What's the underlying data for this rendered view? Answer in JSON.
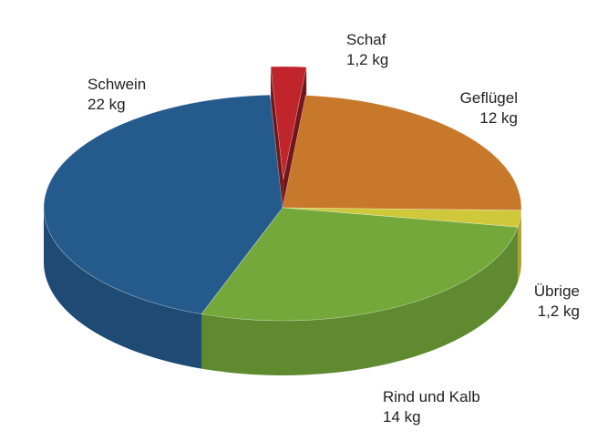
{
  "chart_data": {
    "type": "pie",
    "style": "3d-exploded",
    "slices": [
      {
        "label": "Schaf",
        "value": 1.2,
        "value_label": "1,2 kg",
        "color": "#c0252b",
        "exploded": true
      },
      {
        "label": "Geflügel",
        "value": 12,
        "value_label": "12 kg",
        "color": "#c8782a",
        "exploded": false
      },
      {
        "label": "Übrige",
        "value": 1.2,
        "value_label": "1,2 kg",
        "color": "#cfc83a",
        "exploded": false
      },
      {
        "label": "Rind und Kalb",
        "value": 14,
        "value_label": "14 kg",
        "color": "#74a83b",
        "exploded": false
      },
      {
        "label": "Schwein",
        "value": 22,
        "value_label": "22 kg",
        "color": "#245a8c",
        "exploded": false
      }
    ]
  }
}
